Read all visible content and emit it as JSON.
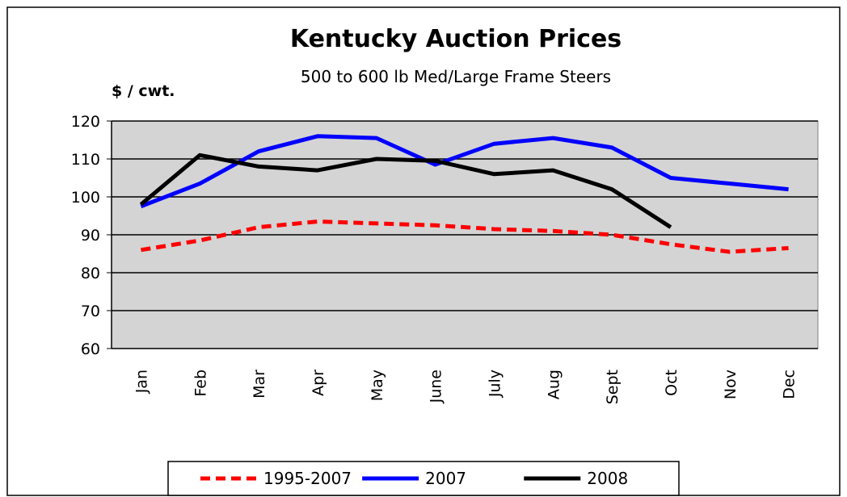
{
  "chart_data": {
    "type": "line",
    "title": "Kentucky Auction Prices",
    "subtitle": "500 to 600 lb Med/Large Frame Steers",
    "y_label": "$ / cwt.",
    "categories": [
      "Jan",
      "Feb",
      "Mar",
      "Apr",
      "May",
      "June",
      "July",
      "Aug",
      "Sept",
      "Oct",
      "Nov",
      "Dec"
    ],
    "series": [
      {
        "name": "1995-2007",
        "color": "#ff0000",
        "dashed": true,
        "values": [
          86,
          88.5,
          92,
          93.5,
          93,
          92.5,
          91.5,
          91,
          90,
          87.5,
          85.5,
          86.5
        ]
      },
      {
        "name": "2007",
        "color": "#0000ff",
        "dashed": false,
        "values": [
          97.5,
          103.5,
          112,
          116,
          115.5,
          108.5,
          114,
          115.5,
          113,
          105,
          103.5,
          102
        ]
      },
      {
        "name": "2008",
        "color": "#000000",
        "dashed": false,
        "values": [
          98,
          111,
          108,
          107,
          110,
          109.5,
          106,
          107,
          102,
          92,
          null,
          null
        ]
      }
    ],
    "ylim": [
      60,
      120
    ],
    "yticks": [
      60,
      70,
      80,
      90,
      100,
      110,
      120
    ],
    "grid": true,
    "plot_background": "#d4d4d4",
    "legend": "bottom"
  }
}
